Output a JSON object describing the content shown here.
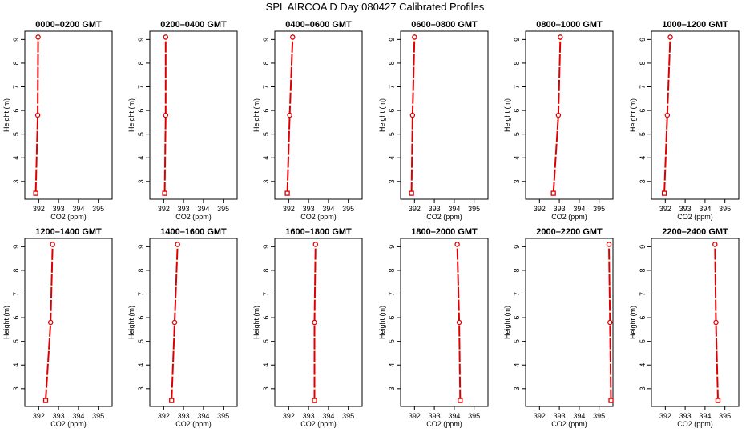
{
  "title": "SPL AIRCOA D  Day 080427  Calibrated Profiles",
  "chart_data": [
    {
      "type": "line",
      "title": "0000–0200 GMT",
      "xlabel": "CO2 (ppm)",
      "ylabel": "Height (m)",
      "xlim": [
        391.3,
        395.7
      ],
      "ylim": [
        2.25,
        9.35
      ],
      "xticks": [
        392,
        393,
        394,
        395
      ],
      "yticks": [
        3,
        4,
        5,
        6,
        7,
        8,
        9
      ],
      "series": [
        {
          "x": [
            391.85,
            391.95,
            391.97
          ],
          "y": [
            2.5,
            5.8,
            9.1
          ]
        }
      ]
    },
    {
      "type": "line",
      "title": "0200–0400 GMT",
      "xlabel": "CO2 (ppm)",
      "ylabel": "Height (m)",
      "xlim": [
        391.3,
        395.7
      ],
      "ylim": [
        2.25,
        9.35
      ],
      "xticks": [
        392,
        393,
        394,
        395
      ],
      "yticks": [
        3,
        4,
        5,
        6,
        7,
        8,
        9
      ],
      "series": [
        {
          "x": [
            392.05,
            392.1,
            392.1
          ],
          "y": [
            2.5,
            5.8,
            9.1
          ]
        }
      ]
    },
    {
      "type": "line",
      "title": "0400–0600 GMT",
      "xlabel": "CO2 (ppm)",
      "ylabel": "Height (m)",
      "xlim": [
        391.3,
        395.7
      ],
      "ylim": [
        2.25,
        9.35
      ],
      "xticks": [
        392,
        393,
        394,
        395
      ],
      "yticks": [
        3,
        4,
        5,
        6,
        7,
        8,
        9
      ],
      "series": [
        {
          "x": [
            391.93,
            392.05,
            392.2
          ],
          "y": [
            2.5,
            5.8,
            9.1
          ]
        }
      ]
    },
    {
      "type": "line",
      "title": "0600–0800 GMT",
      "xlabel": "CO2 (ppm)",
      "ylabel": "Height (m)",
      "xlim": [
        391.3,
        395.7
      ],
      "ylim": [
        2.25,
        9.35
      ],
      "xticks": [
        392,
        393,
        394,
        395
      ],
      "yticks": [
        3,
        4,
        5,
        6,
        7,
        8,
        9
      ],
      "series": [
        {
          "x": [
            391.85,
            391.9,
            392.0
          ],
          "y": [
            2.5,
            5.8,
            9.1
          ]
        }
      ]
    },
    {
      "type": "line",
      "title": "0800–1000 GMT",
      "xlabel": "CO2 (ppm)",
      "ylabel": "Height (m)",
      "xlim": [
        391.3,
        395.7
      ],
      "ylim": [
        2.25,
        9.35
      ],
      "xticks": [
        392,
        393,
        394,
        395
      ],
      "yticks": [
        3,
        4,
        5,
        6,
        7,
        8,
        9
      ],
      "series": [
        {
          "x": [
            392.7,
            392.95,
            393.05
          ],
          "y": [
            2.5,
            5.8,
            9.1
          ]
        }
      ]
    },
    {
      "type": "line",
      "title": "1000–1200 GMT",
      "xlabel": "CO2 (ppm)",
      "ylabel": "Height (m)",
      "xlim": [
        391.3,
        395.7
      ],
      "ylim": [
        2.25,
        9.35
      ],
      "xticks": [
        392,
        393,
        394,
        395
      ],
      "yticks": [
        3,
        4,
        5,
        6,
        7,
        8,
        9
      ],
      "series": [
        {
          "x": [
            391.95,
            392.1,
            392.25
          ],
          "y": [
            2.5,
            5.8,
            9.1
          ]
        }
      ]
    },
    {
      "type": "line",
      "title": "1200–1400 GMT",
      "xlabel": "CO2 (ppm)",
      "ylabel": "Height (m)",
      "xlim": [
        391.3,
        395.7
      ],
      "ylim": [
        2.25,
        9.35
      ],
      "xticks": [
        392,
        393,
        394,
        395
      ],
      "yticks": [
        3,
        4,
        5,
        6,
        7,
        8,
        9
      ],
      "series": [
        {
          "x": [
            392.35,
            392.6,
            392.7
          ],
          "y": [
            2.5,
            5.8,
            9.1
          ]
        }
      ]
    },
    {
      "type": "line",
      "title": "1400–1600 GMT",
      "xlabel": "CO2 (ppm)",
      "ylabel": "Height (m)",
      "xlim": [
        391.3,
        395.7
      ],
      "ylim": [
        2.25,
        9.35
      ],
      "xticks": [
        392,
        393,
        394,
        395
      ],
      "yticks": [
        3,
        4,
        5,
        6,
        7,
        8,
        9
      ],
      "series": [
        {
          "x": [
            392.4,
            392.55,
            392.7
          ],
          "y": [
            2.5,
            5.8,
            9.1
          ]
        }
      ]
    },
    {
      "type": "line",
      "title": "1600–1800 GMT",
      "xlabel": "CO2 (ppm)",
      "ylabel": "Height (m)",
      "xlim": [
        391.3,
        395.7
      ],
      "ylim": [
        2.25,
        9.35
      ],
      "xticks": [
        392,
        393,
        394,
        395
      ],
      "yticks": [
        3,
        4,
        5,
        6,
        7,
        8,
        9
      ],
      "series": [
        {
          "x": [
            393.3,
            393.3,
            393.35
          ],
          "y": [
            2.5,
            5.8,
            9.1
          ]
        }
      ]
    },
    {
      "type": "line",
      "title": "1800–2000 GMT",
      "xlabel": "CO2 (ppm)",
      "ylabel": "Height (m)",
      "xlim": [
        391.3,
        395.7
      ],
      "ylim": [
        2.25,
        9.35
      ],
      "xticks": [
        392,
        393,
        394,
        395
      ],
      "yticks": [
        3,
        4,
        5,
        6,
        7,
        8,
        9
      ],
      "series": [
        {
          "x": [
            394.3,
            394.25,
            394.15
          ],
          "y": [
            2.5,
            5.8,
            9.1
          ]
        }
      ]
    },
    {
      "type": "line",
      "title": "2000–2200 GMT",
      "xlabel": "CO2 (ppm)",
      "ylabel": "Height (m)",
      "xlim": [
        391.3,
        395.7
      ],
      "ylim": [
        2.25,
        9.35
      ],
      "xticks": [
        392,
        393,
        394,
        395
      ],
      "yticks": [
        3,
        4,
        5,
        6,
        7,
        8,
        9
      ],
      "series": [
        {
          "x": [
            395.6,
            395.55,
            395.5
          ],
          "y": [
            2.5,
            5.8,
            9.1
          ]
        }
      ]
    },
    {
      "type": "line",
      "title": "2200–2400 GMT",
      "xlabel": "CO2 (ppm)",
      "ylabel": "Height (m)",
      "xlim": [
        391.3,
        395.7
      ],
      "ylim": [
        2.25,
        9.35
      ],
      "xticks": [
        392,
        393,
        394,
        395
      ],
      "yticks": [
        3,
        4,
        5,
        6,
        7,
        8,
        9
      ],
      "series": [
        {
          "x": [
            394.65,
            394.55,
            394.5
          ],
          "y": [
            2.5,
            5.8,
            9.1
          ]
        }
      ]
    }
  ]
}
